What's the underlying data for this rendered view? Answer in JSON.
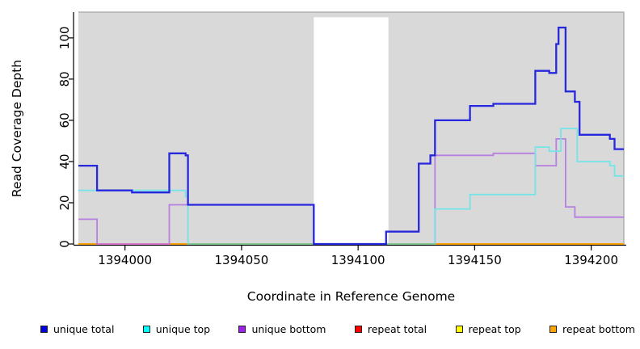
{
  "axes": {
    "xlabel": "Coordinate in Reference Genome",
    "ylabel": "Read Coverage Depth"
  },
  "chart_data": {
    "type": "line",
    "subtype": "step",
    "title": "",
    "xlabel": "Coordinate in Reference Genome",
    "ylabel": "Read Coverage Depth",
    "x_range": [
      1393980,
      1394214
    ],
    "y_range": [
      0,
      112.5
    ],
    "x_ticks": [
      1394000,
      1394050,
      1394100,
      1394150,
      1394200
    ],
    "y_ticks": [
      0,
      20,
      40,
      60,
      80,
      100
    ],
    "grid": false,
    "legend_position": "bottom",
    "panel_background": "#d9d9d9",
    "axis_color": "#000000",
    "panel_border_color": "#a6a6a6",
    "masked_region": {
      "x_start": 1394081,
      "x_end": 1394113,
      "y_top": 110,
      "color": "#ffffff"
    },
    "series": [
      {
        "name": "repeat total",
        "color": "#cc0000",
        "width": 1.6,
        "points": [
          [
            1393980,
            0
          ],
          [
            1394214,
            0
          ]
        ]
      },
      {
        "name": "repeat top",
        "color": "#f2e400",
        "width": 1.6,
        "points": [
          [
            1393980,
            0
          ],
          [
            1394214,
            0
          ]
        ]
      },
      {
        "name": "repeat bottom",
        "color": "#ff9f00",
        "width": 1.8,
        "points": [
          [
            1393980,
            0
          ],
          [
            1394214,
            0
          ]
        ]
      },
      {
        "name": "unique bottom",
        "color": "#b77fe0",
        "width": 1.8,
        "points": [
          [
            1393980,
            12
          ],
          [
            1393988,
            0
          ],
          [
            1394019,
            19
          ],
          [
            1394081,
            0
          ],
          [
            1394133,
            43
          ],
          [
            1394158,
            44
          ],
          [
            1394176,
            38
          ],
          [
            1394185,
            51
          ],
          [
            1394189,
            18
          ],
          [
            1394193,
            13
          ],
          [
            1394214,
            13
          ]
        ]
      },
      {
        "name": "unique top",
        "color": "#74e4e8",
        "width": 1.8,
        "points": [
          [
            1393980,
            26
          ],
          [
            1394026,
            23
          ],
          [
            1394027,
            0
          ],
          [
            1394133,
            17
          ],
          [
            1394148,
            24
          ],
          [
            1394176,
            47
          ],
          [
            1394182,
            45
          ],
          [
            1394187,
            56
          ],
          [
            1394194,
            40
          ],
          [
            1394208,
            38
          ],
          [
            1394210,
            33
          ],
          [
            1394214,
            33
          ]
        ]
      },
      {
        "name": "unique total",
        "color": "#2727dd",
        "width": 2.3,
        "points": [
          [
            1393980,
            38
          ],
          [
            1393988,
            26
          ],
          [
            1394003,
            25
          ],
          [
            1394019,
            44
          ],
          [
            1394026,
            43
          ],
          [
            1394027,
            19
          ],
          [
            1394081,
            0
          ],
          [
            1394112,
            6
          ],
          [
            1394126,
            39
          ],
          [
            1394131,
            43
          ],
          [
            1394133,
            60
          ],
          [
            1394148,
            67
          ],
          [
            1394158,
            68
          ],
          [
            1394176,
            84
          ],
          [
            1394182,
            83
          ],
          [
            1394185,
            97
          ],
          [
            1394186,
            105
          ],
          [
            1394189,
            74
          ],
          [
            1394193,
            69
          ],
          [
            1394195,
            53
          ],
          [
            1394208,
            51
          ],
          [
            1394210,
            46
          ],
          [
            1394214,
            46
          ]
        ]
      }
    ],
    "baseline_overlays": [
      {
        "x_start": 1393988,
        "x_end": 1394019,
        "color": "#d678cc",
        "note": "unique-bottom at zero over repeat lines"
      },
      {
        "x_start": 1394027,
        "x_end": 1394081,
        "color": "#7cc98a",
        "note": "unique-top at zero over repeat lines"
      },
      {
        "x_start": 1394112,
        "x_end": 1394133,
        "color": "#7cc98a",
        "note": "unique-top at zero over repeat lines"
      }
    ]
  },
  "legend": {
    "items": [
      {
        "label": "unique total",
        "swatch_color": "#0000e0"
      },
      {
        "label": "unique top",
        "swatch_color": "#00ffff"
      },
      {
        "label": "unique bottom",
        "swatch_color": "#a020f0"
      },
      {
        "label": "repeat total",
        "swatch_color": "#ff0000"
      },
      {
        "label": "repeat top",
        "swatch_color": "#ffff00"
      },
      {
        "label": "repeat bottom",
        "swatch_color": "#ffa500"
      }
    ]
  }
}
